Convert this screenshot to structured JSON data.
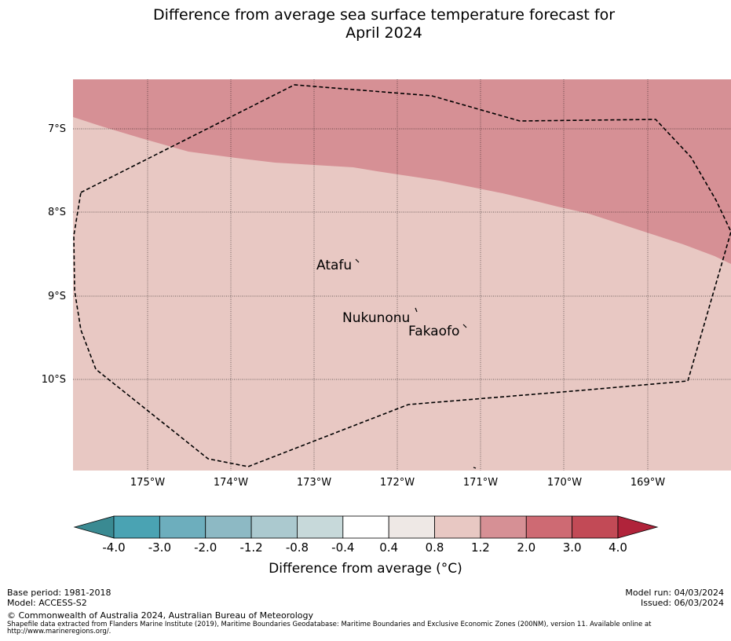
{
  "title": {
    "line1": "Difference from average sea surface temperature forecast for",
    "line2": "April 2024"
  },
  "map": {
    "latitude_labels": [
      "7°S",
      "8°S",
      "9°S",
      "10°S"
    ],
    "longitude_labels": [
      "175°W",
      "174°W",
      "173°W",
      "172°W",
      "171°W",
      "170°W",
      "169°W"
    ],
    "islands": [
      {
        "name": "Atafu"
      },
      {
        "name": "Nukunonu"
      },
      {
        "name": "Fakaofo"
      }
    ],
    "colors": {
      "north_region": "#d69095",
      "south_region": "#e8c8c3",
      "eez_boundary": "#000000"
    }
  },
  "colorbar": {
    "ticks": [
      "-4.0",
      "-3.0",
      "-2.0",
      "-1.2",
      "-0.8",
      "-0.4",
      "0.4",
      "0.8",
      "1.2",
      "2.0",
      "3.0",
      "4.0"
    ],
    "colors": [
      "#3a8a92",
      "#4aa3b3",
      "#6daebd",
      "#8db9c4",
      "#abc9cf",
      "#c7d9da",
      "#ffffff",
      "#eee8e5",
      "#e8c8c3",
      "#d69095",
      "#ce6a73",
      "#c24a56",
      "#b0233a"
    ],
    "label": "Difference from average (°C)"
  },
  "footer": {
    "base_period": "Base period: 1981-2018",
    "model": "Model: ACCESS-S2",
    "model_run": "Model run: 04/03/2024",
    "issued": "Issued: 06/03/2024",
    "copyright": "© Commonwealth of Australia 2024, Australian Bureau of Meteorology",
    "shapefile": "Shapefile data extracted from Flanders Marine Institute (2019), Maritime Boundaries Geodatabase: Maritime Boundaries and Exclusive Economic Zones (200NM), version 11. Available online at http://www.marineregions.org/."
  }
}
